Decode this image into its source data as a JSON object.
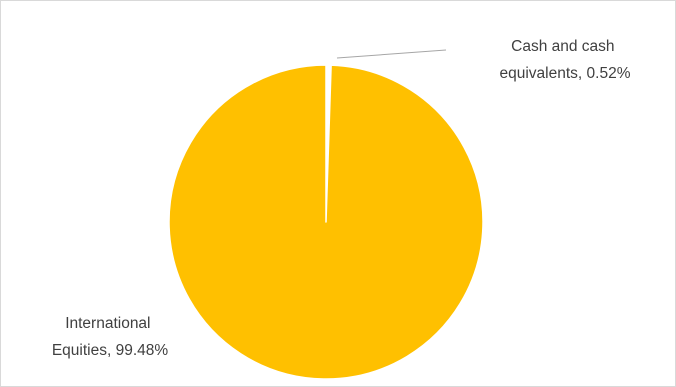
{
  "chart_data": {
    "type": "pie",
    "title": "",
    "slices": [
      {
        "name": "Cash and cash equivalents",
        "value": 0.52,
        "color": "#ffffff",
        "label_lines": [
          "Cash and cash",
          "equivalents, 0.52%"
        ]
      },
      {
        "name": "International Equities",
        "value": 99.48,
        "color": "#ffc000",
        "label_lines": [
          "International",
          "Equities, 99.48%"
        ]
      }
    ],
    "unit": "%",
    "legend": "none",
    "start_angle_deg": 0,
    "direction": "clockwise"
  }
}
